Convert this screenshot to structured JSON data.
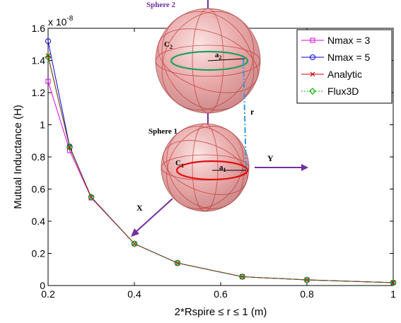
{
  "chart_data": {
    "type": "line",
    "xlabel": "2*Rspire ≤ r ≤ 1 (m)",
    "ylabel": "Mutual Inductance (H)",
    "y_multiplier": "x 10",
    "y_exponent": "-8",
    "xlim": [
      0.2,
      1.0
    ],
    "ylim": [
      0,
      1.6
    ],
    "xticks": [
      "0.2",
      "0.4",
      "0.6",
      "0.8",
      "1"
    ],
    "yticks": [
      "0",
      "0.2",
      "0.4",
      "0.6",
      "0.8",
      "1",
      "1.2",
      "1.4",
      "1.6"
    ],
    "legend_position": "top-right",
    "series": [
      {
        "name": "Nmax = 3",
        "color": "#e000e0",
        "marker": "square",
        "dash": "solid",
        "x": [
          0.2,
          0.25,
          0.3,
          0.4,
          0.5,
          0.65,
          0.8,
          1.0
        ],
        "y": [
          1.27,
          0.84,
          0.545,
          0.26,
          0.14,
          0.055,
          0.035,
          0.018
        ]
      },
      {
        "name": "Nmax = 5",
        "color": "#0000e0",
        "marker": "circle",
        "dash": "solid",
        "x": [
          0.2,
          0.25,
          0.3,
          0.4,
          0.5,
          0.65,
          0.8,
          1.0
        ],
        "y": [
          1.52,
          0.865,
          0.55,
          0.26,
          0.14,
          0.055,
          0.035,
          0.018
        ]
      },
      {
        "name": "Analytic",
        "color": "#d00000",
        "marker": "x",
        "dash": "solid",
        "x": [
          0.2,
          0.25,
          0.3,
          0.4,
          0.5,
          0.65,
          0.8,
          1.0
        ],
        "y": [
          1.43,
          0.86,
          0.55,
          0.26,
          0.14,
          0.055,
          0.035,
          0.018
        ]
      },
      {
        "name": "Flux3D",
        "color": "#00b000",
        "marker": "diamond",
        "dash": "dotted",
        "x": [
          0.2,
          0.25,
          0.3,
          0.4,
          0.5,
          0.65,
          0.8,
          1.0
        ],
        "y": [
          1.42,
          0.86,
          0.55,
          0.26,
          0.14,
          0.055,
          0.035,
          0.018
        ]
      }
    ]
  },
  "inset": {
    "sphere2_title": "Sphere 2",
    "sphere1_title": "Sphere 1",
    "c2_main": "C",
    "c2_sub": "2",
    "a2_main": "a",
    "a2_sub": "2",
    "c1_main": "C",
    "c1_sub": "1",
    "a1_main": "a",
    "a1_sub": "1",
    "r_label": "r",
    "x_axis_label": "X",
    "y_axis_label": "Y",
    "colors": {
      "sphere_fill": "#e8a6a6",
      "sphere_lines": "#c03030",
      "loop2": "#20a060",
      "loop1": "#e01010",
      "arrow": "#7030a0",
      "distance": "#3399dd"
    }
  }
}
